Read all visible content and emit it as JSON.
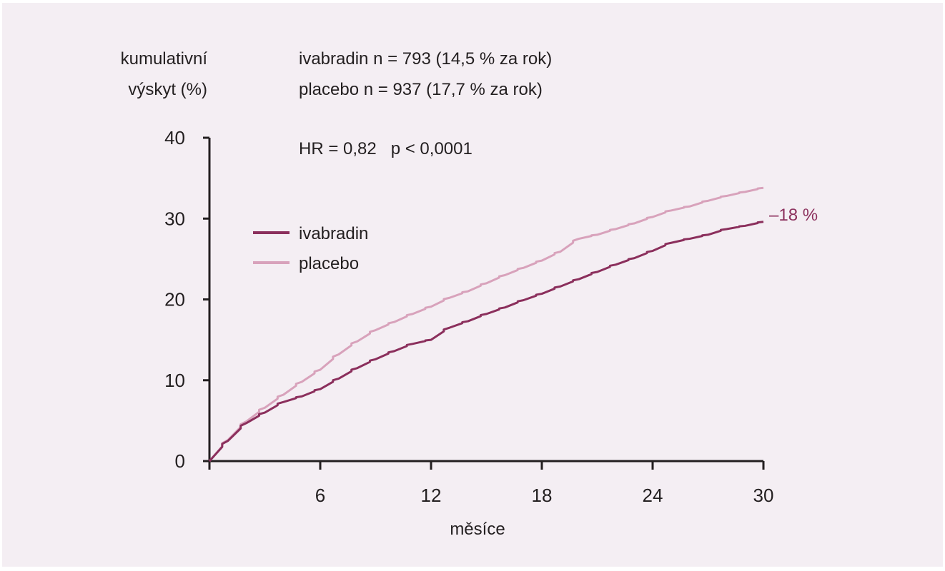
{
  "chart_data": {
    "type": "line",
    "ylabel_line1": "kumulativní",
    "ylabel_line2": "výskyt (%)",
    "xlabel": "měsíce",
    "xlim": [
      0,
      30
    ],
    "ylim": [
      0,
      40
    ],
    "xticks": [
      6,
      12,
      18,
      24,
      30
    ],
    "yticks": [
      0,
      10,
      20,
      30,
      40
    ],
    "annotations": {
      "line1": "ivabradin n = 793 (14,5 % za rok)",
      "line2": "placebo n = 937 (17,7 % za rok)",
      "stats": "HR = 0,82   p < 0,0001",
      "reduction": "–18 %"
    },
    "legend_position": "upper-left",
    "series": [
      {
        "name": "ivabradin",
        "color": "#8b2f5c",
        "x": [
          0,
          1,
          2,
          3,
          4,
          5,
          6,
          7,
          8,
          9,
          10,
          11,
          12,
          13,
          14,
          15,
          16,
          17,
          18,
          19,
          20,
          21,
          22,
          23,
          24,
          25,
          26,
          27,
          28,
          29,
          30
        ],
        "y": [
          0,
          2.5,
          4.7,
          6.0,
          7.3,
          8.0,
          8.9,
          10.2,
          11.5,
          12.6,
          13.6,
          14.5,
          15.0,
          16.5,
          17.3,
          18.2,
          19.0,
          19.9,
          20.7,
          21.6,
          22.5,
          23.4,
          24.3,
          25.1,
          26.0,
          27.0,
          27.5,
          28.0,
          28.7,
          29.1,
          29.6
        ]
      },
      {
        "name": "placebo",
        "color": "#d8a2bb",
        "x": [
          0,
          1,
          2,
          3,
          4,
          5,
          6,
          7,
          8,
          9,
          10,
          11,
          12,
          13,
          14,
          15,
          16,
          17,
          18,
          19,
          20,
          21,
          22,
          23,
          24,
          25,
          26,
          27,
          28,
          29,
          30
        ],
        "y": [
          0,
          2.6,
          4.9,
          6.6,
          8.2,
          9.8,
          11.3,
          13.2,
          14.8,
          16.2,
          17.2,
          18.2,
          19.1,
          20.2,
          21.0,
          22.0,
          23.0,
          23.9,
          24.8,
          25.9,
          27.5,
          28.0,
          28.7,
          29.4,
          30.2,
          31.0,
          31.5,
          32.2,
          32.8,
          33.3,
          33.8
        ]
      }
    ]
  }
}
